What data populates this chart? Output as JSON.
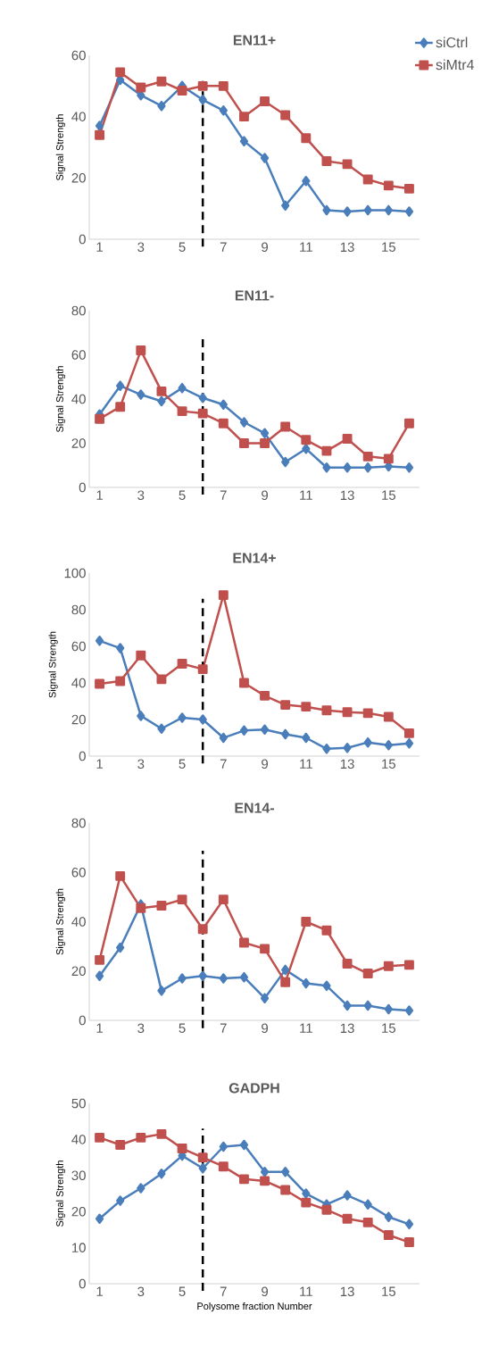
{
  "chart_data": [
    {
      "type": "line",
      "title": "EN11+",
      "ylabel": "Signal Strength",
      "x": [
        1,
        2,
        3,
        4,
        5,
        6,
        7,
        8,
        9,
        10,
        11,
        12,
        13,
        14,
        15,
        16
      ],
      "xlim": [
        0.5,
        16.5
      ],
      "xticks": [
        1,
        3,
        5,
        7,
        9,
        11,
        13,
        15
      ],
      "ylim": [
        0,
        60
      ],
      "yticks": [
        0,
        20,
        40,
        60
      ],
      "legend": "top right",
      "series": [
        {
          "name": "siCtrl",
          "color": "#4a7ebb",
          "marker": "diamond",
          "values": [
            37,
            52,
            47,
            43.5,
            50,
            45.5,
            42,
            32,
            26.5,
            11,
            19,
            9.5,
            9,
            9.5,
            9.5,
            9
          ]
        },
        {
          "name": "siMtr4",
          "color": "#c0504d",
          "marker": "square",
          "values": [
            34,
            54.5,
            49.5,
            51.5,
            48.5,
            50,
            50,
            40,
            45,
            40.5,
            33,
            25.5,
            24.5,
            19.5,
            17.5,
            16.5
          ]
        }
      ],
      "ref_lines": [
        {
          "axis": "x",
          "value": 6,
          "color": "#000000",
          "line_style": "dashed"
        }
      ]
    },
    {
      "type": "line",
      "title": "EN11-",
      "ylabel": "Signal Strength",
      "x": [
        1,
        2,
        3,
        4,
        5,
        6,
        7,
        8,
        9,
        10,
        11,
        12,
        13,
        14,
        15,
        16
      ],
      "xlim": [
        0.5,
        16.5
      ],
      "xticks": [
        1,
        3,
        5,
        7,
        9,
        11,
        13,
        15
      ],
      "ylim": [
        0,
        80
      ],
      "yticks": [
        0,
        20,
        40,
        60,
        80
      ],
      "series": [
        {
          "color": "#4a7ebb",
          "marker": "diamond",
          "values": [
            33,
            46,
            42,
            39,
            45,
            40.5,
            37.5,
            29.5,
            24.5,
            11.5,
            17.5,
            9,
            9,
            9,
            9.5,
            9
          ]
        },
        {
          "color": "#c0504d",
          "marker": "square",
          "values": [
            31,
            36.5,
            62,
            43.5,
            34.5,
            33.5,
            29,
            20,
            20,
            27.5,
            21.5,
            16.5,
            22,
            14,
            13,
            29
          ]
        }
      ],
      "ref_lines": [
        {
          "axis": "x",
          "value": 6,
          "color": "#000000",
          "line_style": "dashed"
        }
      ]
    },
    {
      "type": "line",
      "title": "EN14+",
      "ylabel": "Signal Strength",
      "x": [
        1,
        2,
        3,
        4,
        5,
        6,
        7,
        8,
        9,
        10,
        11,
        12,
        13,
        14,
        15,
        16
      ],
      "xlim": [
        0.5,
        16.5
      ],
      "xticks": [
        1,
        3,
        5,
        7,
        9,
        11,
        13,
        15
      ],
      "ylim": [
        0,
        100
      ],
      "yticks": [
        0,
        20,
        40,
        60,
        80,
        100
      ],
      "series": [
        {
          "color": "#4a7ebb",
          "marker": "diamond",
          "values": [
            63,
            59,
            22,
            15,
            21,
            20,
            10,
            14,
            14.5,
            12,
            10,
            4,
            4.5,
            7.5,
            6,
            7
          ]
        },
        {
          "color": "#c0504d",
          "marker": "square",
          "values": [
            39.5,
            41,
            55,
            42,
            50.5,
            47.5,
            88,
            40,
            33,
            28,
            27,
            25,
            24,
            23.5,
            21.5,
            12.5
          ]
        }
      ],
      "ref_lines": [
        {
          "axis": "x",
          "value": 6,
          "color": "#000000",
          "line_style": "dashed"
        }
      ]
    },
    {
      "type": "line",
      "title": "EN14-",
      "ylabel": "Signal Strength",
      "x": [
        1,
        2,
        3,
        4,
        5,
        6,
        7,
        8,
        9,
        10,
        11,
        12,
        13,
        14,
        15,
        16
      ],
      "xlim": [
        0.5,
        16.5
      ],
      "xticks": [
        1,
        3,
        5,
        7,
        9,
        11,
        13,
        15
      ],
      "ylim": [
        0,
        80
      ],
      "yticks": [
        0,
        20,
        40,
        60,
        80
      ],
      "series": [
        {
          "color": "#4a7ebb",
          "marker": "diamond",
          "values": [
            18,
            29.5,
            47,
            12,
            17,
            18,
            17,
            17.5,
            9,
            20.5,
            15,
            14,
            6,
            6,
            4.5,
            4
          ]
        },
        {
          "color": "#c0504d",
          "marker": "square",
          "values": [
            24.5,
            58.5,
            45.5,
            46.5,
            49,
            37,
            49,
            31.5,
            29,
            15.5,
            40,
            36.5,
            23,
            19,
            22,
            22.5
          ]
        }
      ],
      "ref_lines": [
        {
          "axis": "x",
          "value": 6,
          "color": "#000000",
          "line_style": "dashed"
        }
      ]
    },
    {
      "type": "line",
      "title": "GADPH",
      "ylabel": "Signal Strength",
      "xlabel": "Polysome fraction Number",
      "x": [
        1,
        2,
        3,
        4,
        5,
        6,
        7,
        8,
        9,
        10,
        11,
        12,
        13,
        14,
        15,
        16
      ],
      "xlim": [
        0.5,
        16.5
      ],
      "xticks": [
        1,
        3,
        5,
        7,
        9,
        11,
        13,
        15
      ],
      "ylim": [
        0,
        50
      ],
      "yticks": [
        0,
        10,
        20,
        30,
        40,
        50
      ],
      "series": [
        {
          "color": "#4a7ebb",
          "marker": "diamond",
          "values": [
            18,
            23,
            26.5,
            30.5,
            35.5,
            32,
            38,
            38.5,
            31,
            31,
            25,
            22,
            24.5,
            22,
            18.5,
            16.5
          ]
        },
        {
          "color": "#c0504d",
          "marker": "square",
          "values": [
            40.5,
            38.5,
            40.5,
            41.5,
            37.5,
            35,
            32.5,
            29,
            28.5,
            26,
            22.5,
            20.5,
            18,
            17,
            13.5,
            11.5
          ]
        }
      ],
      "ref_lines": [
        {
          "axis": "x",
          "value": 6,
          "color": "#000000",
          "line_style": "dashed"
        }
      ]
    }
  ]
}
